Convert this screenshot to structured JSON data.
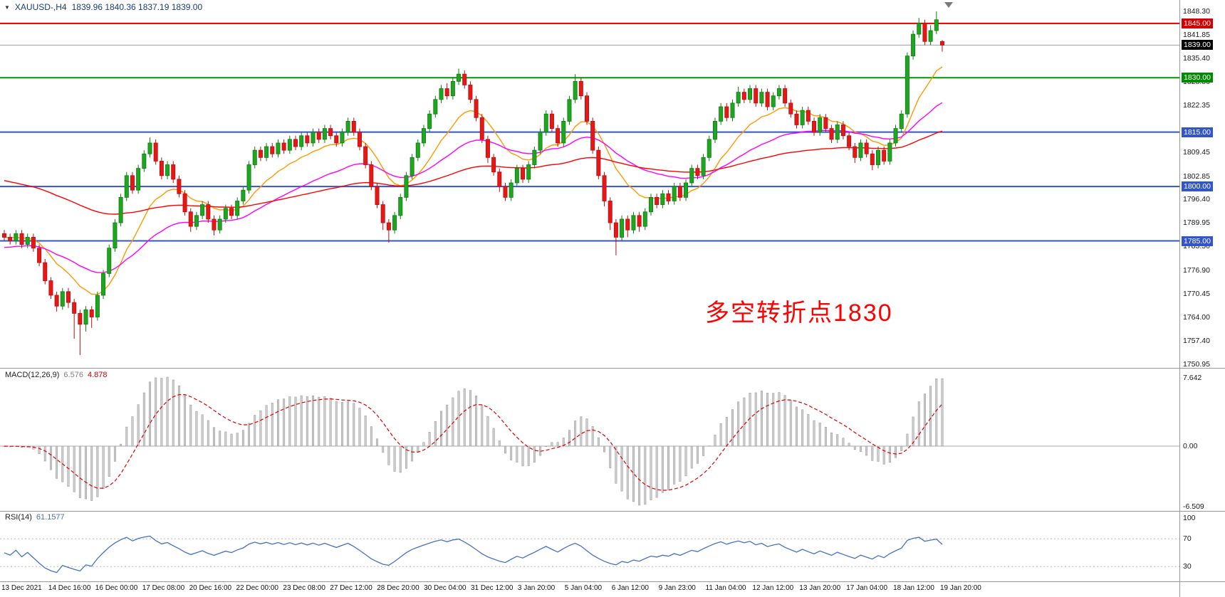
{
  "header": {
    "symbol": "XAUUSD-,H4",
    "ohlc": "1839.96 1840.36 1837.19 1839.00"
  },
  "annotation": {
    "text": "多空转折点1830",
    "color": "#FF0000"
  },
  "colors": {
    "up_candle": "#1FA51F",
    "up_candle_stroke": "#0E7D12",
    "down_candle": "#E61717",
    "down_candle_stroke": "#B80F0F",
    "panel_border": "#999999",
    "current_price_line": "#9B9B9B",
    "macd_histogram": "#CFCFCF",
    "macd_histogram_stroke": "#8F8F8F",
    "macd_signal": "#DD0000",
    "rsi_line": "#4572C4"
  },
  "chart_data": {
    "type": "candlestick",
    "symbol": "XAUUSD",
    "timeframe": "H4",
    "title": "XAUUSD-,H4",
    "current_price": 1839.0,
    "current_bar": {
      "open": 1839.96,
      "high": 1840.36,
      "low": 1837.19,
      "close": 1839.0
    },
    "price_axis_range": [
      1750.95,
      1848.3
    ],
    "price_ticks": [
      "1848.30",
      "1841.85",
      "1835.40",
      "1828.80",
      "1822.35",
      "1809.45",
      "1802.85",
      "1796.40",
      "1789.95",
      "1783.50",
      "1776.90",
      "1770.45",
      "1764.00",
      "1757.40",
      "1750.95"
    ],
    "hlines": [
      {
        "price": 1845.0,
        "label": "1845.00",
        "color": "#E80000",
        "badge_bg": "#D40000"
      },
      {
        "price": 1830.0,
        "label": "1830.00",
        "color": "#009600",
        "badge_bg": "#008A00"
      },
      {
        "price": 1815.0,
        "label": "1815.00",
        "color": "#3355CC",
        "badge_bg": "#3355CC"
      },
      {
        "price": 1800.0,
        "label": "1800.00",
        "color": "#3355CC",
        "badge_bg": "#3355CC"
      },
      {
        "price": 1785.0,
        "label": "1785.00",
        "color": "#3355CC",
        "badge_bg": "#3355CC"
      }
    ],
    "current_price_badge": {
      "label": "1839.00",
      "badge_bg": "#000000"
    },
    "moving_averages": [
      {
        "name": "ma-fast-orange",
        "period": 12,
        "seed": 1786,
        "color": "#FF9900"
      },
      {
        "name": "ma-mid-magenta",
        "period": 34,
        "seed": 1783,
        "color": "#FF00FF"
      },
      {
        "name": "ma-slow-red",
        "period": 89,
        "seed": 1802,
        "color": "#FF0000"
      }
    ],
    "time_labels": [
      "13 Dec 2021",
      "14 Dec 16:00",
      "16 Dec 00:00",
      "17 Dec 08:00",
      "20 Dec 16:00",
      "22 Dec 00:00",
      "23 Dec 08:00",
      "27 Dec 12:00",
      "28 Dec 20:00",
      "30 Dec 04:00",
      "31 Dec 12:00",
      "3 Jan 20:00",
      "5 Jan 04:00",
      "6 Jan 12:00",
      "9 Jan 23:00",
      "11 Jan 04:00",
      "12 Jan 12:00",
      "13 Jan 20:00",
      "17 Jan 04:00",
      "18 Jan 12:00",
      "19 Jan 20:00"
    ],
    "macd": {
      "label": "MACD(12,26,9)",
      "fast": 12,
      "slow": 26,
      "signal": 9,
      "value_main": "6.576",
      "value_signal": "4.878",
      "ticks": [
        "7.642",
        "0.00",
        "-6.509"
      ],
      "tick_values": [
        7.642,
        0.0,
        -6.509
      ]
    },
    "rsi": {
      "label": "RSI(14)",
      "period": 14,
      "value": "61.1577",
      "ticks": [
        "100",
        "70",
        "30"
      ],
      "tick_values": [
        100,
        70,
        30
      ],
      "levels": [
        70,
        30
      ]
    },
    "candles": [
      [
        1787,
        1788,
        1785,
        1786
      ],
      [
        1786,
        1787,
        1784,
        1785
      ],
      [
        1785,
        1788,
        1784,
        1787
      ],
      [
        1787,
        1788,
        1783,
        1784
      ],
      [
        1784,
        1787,
        1783,
        1786
      ],
      [
        1786,
        1787,
        1782,
        1783
      ],
      [
        1783,
        1784,
        1778,
        1779
      ],
      [
        1779,
        1780,
        1773,
        1774
      ],
      [
        1774,
        1775,
        1769,
        1770
      ],
      [
        1770,
        1771,
        1765.5,
        1767
      ],
      [
        1767,
        1772,
        1766,
        1771
      ],
      [
        1771,
        1772,
        1766.5,
        1768
      ],
      [
        1768,
        1769,
        1758,
        1765
      ],
      [
        1765,
        1766,
        1753.5,
        1762
      ],
      [
        1762,
        1767,
        1760,
        1766
      ],
      [
        1766,
        1767,
        1761,
        1764
      ],
      [
        1764,
        1771,
        1763,
        1770
      ],
      [
        1770,
        1777,
        1769,
        1776
      ],
      [
        1776,
        1784,
        1775,
        1783
      ],
      [
        1783,
        1791,
        1782,
        1790
      ],
      [
        1790,
        1798,
        1789,
        1797
      ],
      [
        1797,
        1804,
        1796,
        1803
      ],
      [
        1803,
        1804,
        1798,
        1799
      ],
      [
        1799,
        1806,
        1798,
        1805
      ],
      [
        1805,
        1810,
        1804,
        1809
      ],
      [
        1809,
        1813.5,
        1808,
        1812
      ],
      [
        1812,
        1813,
        1806,
        1807
      ],
      [
        1807,
        1808,
        1802,
        1803
      ],
      [
        1803,
        1807,
        1802,
        1806
      ],
      [
        1806,
        1807,
        1801,
        1802
      ],
      [
        1802,
        1803,
        1797,
        1798
      ],
      [
        1798,
        1799,
        1792,
        1793
      ],
      [
        1793,
        1794,
        1787.5,
        1789
      ],
      [
        1789,
        1793,
        1788,
        1792
      ],
      [
        1792,
        1796,
        1791,
        1795
      ],
      [
        1795,
        1796,
        1790,
        1791
      ],
      [
        1791,
        1792,
        1786.5,
        1788
      ],
      [
        1788,
        1792,
        1787,
        1791
      ],
      [
        1791,
        1795,
        1790,
        1794
      ],
      [
        1794,
        1795,
        1791,
        1792
      ],
      [
        1792,
        1797,
        1791,
        1796
      ],
      [
        1796,
        1800,
        1795,
        1799
      ],
      [
        1799,
        1807,
        1798,
        1806
      ],
      [
        1806,
        1811,
        1805,
        1810
      ],
      [
        1810,
        1811,
        1807,
        1808
      ],
      [
        1808,
        1812,
        1807,
        1811
      ],
      [
        1811,
        1812,
        1808,
        1809
      ],
      [
        1809,
        1813,
        1808,
        1812
      ],
      [
        1812,
        1813,
        1809,
        1810
      ],
      [
        1810,
        1814,
        1809,
        1813
      ],
      [
        1813,
        1814,
        1810,
        1811
      ],
      [
        1811,
        1815,
        1810,
        1814
      ],
      [
        1814,
        1815,
        1811,
        1812
      ],
      [
        1812,
        1816,
        1811,
        1815
      ],
      [
        1815,
        1816,
        1812,
        1813
      ],
      [
        1813,
        1817,
        1812,
        1816
      ],
      [
        1816,
        1817,
        1813,
        1814
      ],
      [
        1814,
        1815,
        1811,
        1812
      ],
      [
        1812,
        1816,
        1811,
        1815
      ],
      [
        1815,
        1819,
        1814,
        1818
      ],
      [
        1818,
        1819,
        1814,
        1815
      ],
      [
        1815,
        1816,
        1810,
        1811
      ],
      [
        1811,
        1812,
        1805,
        1806
      ],
      [
        1806,
        1807,
        1799,
        1800
      ],
      [
        1800,
        1801,
        1794,
        1795
      ],
      [
        1795,
        1796,
        1788,
        1790
      ],
      [
        1790,
        1791,
        1784.5,
        1788
      ],
      [
        1788,
        1793,
        1787,
        1792
      ],
      [
        1792,
        1798,
        1791,
        1797
      ],
      [
        1797,
        1804,
        1796,
        1803
      ],
      [
        1803,
        1809,
        1802,
        1808
      ],
      [
        1808,
        1813,
        1807,
        1812
      ],
      [
        1812,
        1817,
        1811,
        1816
      ],
      [
        1816,
        1821,
        1815,
        1820
      ],
      [
        1820,
        1825,
        1819,
        1824
      ],
      [
        1824,
        1828,
        1823,
        1827
      ],
      [
        1827,
        1828.5,
        1824,
        1825
      ],
      [
        1825,
        1830,
        1824,
        1829
      ],
      [
        1829,
        1832.5,
        1828,
        1831
      ],
      [
        1831,
        1832,
        1827,
        1828
      ],
      [
        1828,
        1829,
        1823,
        1824
      ],
      [
        1824,
        1825,
        1818,
        1819
      ],
      [
        1819,
        1820,
        1812,
        1813
      ],
      [
        1813,
        1814,
        1806.5,
        1808
      ],
      [
        1808,
        1809,
        1803,
        1804
      ],
      [
        1804,
        1805,
        1798.5,
        1800
      ],
      [
        1800,
        1801,
        1796,
        1797
      ],
      [
        1797,
        1802,
        1796,
        1801
      ],
      [
        1801,
        1806,
        1800,
        1805
      ],
      [
        1805,
        1806,
        1801,
        1802
      ],
      [
        1802,
        1807,
        1801,
        1806
      ],
      [
        1806,
        1811,
        1805,
        1810
      ],
      [
        1810,
        1816,
        1809,
        1815
      ],
      [
        1815,
        1821,
        1814,
        1820
      ],
      [
        1820,
        1821,
        1815,
        1816
      ],
      [
        1816,
        1817,
        1811,
        1812
      ],
      [
        1812,
        1819,
        1811,
        1818
      ],
      [
        1818,
        1825,
        1817,
        1824
      ],
      [
        1824,
        1831,
        1823,
        1829
      ],
      [
        1829,
        1830,
        1824,
        1825
      ],
      [
        1825,
        1826,
        1817,
        1818
      ],
      [
        1818,
        1819,
        1809,
        1810
      ],
      [
        1810,
        1811,
        1802,
        1803
      ],
      [
        1803,
        1804,
        1794.5,
        1796
      ],
      [
        1796,
        1797,
        1788,
        1790
      ],
      [
        1790,
        1791,
        1781,
        1786
      ],
      [
        1786,
        1792,
        1785,
        1791
      ],
      [
        1791,
        1792,
        1786,
        1788
      ],
      [
        1788,
        1793,
        1787,
        1792
      ],
      [
        1792,
        1793,
        1787.5,
        1789
      ],
      [
        1789,
        1794,
        1788,
        1793
      ],
      [
        1793,
        1798,
        1792,
        1797
      ],
      [
        1797,
        1798,
        1794,
        1795
      ],
      [
        1795,
        1799,
        1794,
        1798
      ],
      [
        1798,
        1799,
        1795,
        1796
      ],
      [
        1796,
        1801,
        1795,
        1800
      ],
      [
        1800,
        1801,
        1796,
        1797
      ],
      [
        1797,
        1802,
        1796,
        1801
      ],
      [
        1801,
        1806,
        1800,
        1805
      ],
      [
        1805,
        1806,
        1802,
        1803
      ],
      [
        1803,
        1809,
        1802,
        1808
      ],
      [
        1808,
        1814,
        1807,
        1813
      ],
      [
        1813,
        1819,
        1812,
        1818
      ],
      [
        1818,
        1823,
        1817,
        1822
      ],
      [
        1822,
        1823,
        1818,
        1819
      ],
      [
        1819,
        1824,
        1818,
        1823
      ],
      [
        1823,
        1827.5,
        1822,
        1826
      ],
      [
        1826,
        1827,
        1823,
        1824
      ],
      [
        1824,
        1828,
        1823,
        1827
      ],
      [
        1827,
        1828,
        1822,
        1823
      ],
      [
        1823,
        1827,
        1822,
        1826
      ],
      [
        1826,
        1827,
        1821,
        1822
      ],
      [
        1822,
        1826,
        1821,
        1825
      ],
      [
        1825,
        1828,
        1824,
        1827
      ],
      [
        1827,
        1828,
        1822,
        1823
      ],
      [
        1823,
        1824,
        1819,
        1820
      ],
      [
        1820,
        1821,
        1816,
        1817
      ],
      [
        1817,
        1822,
        1816,
        1821
      ],
      [
        1821,
        1822,
        1817,
        1818
      ],
      [
        1818,
        1819,
        1814,
        1815
      ],
      [
        1815,
        1820,
        1814,
        1819
      ],
      [
        1819,
        1820,
        1815,
        1816
      ],
      [
        1816,
        1817,
        1812,
        1813
      ],
      [
        1813,
        1818,
        1812,
        1817
      ],
      [
        1817,
        1818,
        1813,
        1814
      ],
      [
        1814,
        1815,
        1810,
        1811
      ],
      [
        1811,
        1812,
        1806.5,
        1808
      ],
      [
        1808,
        1813,
        1807,
        1812
      ],
      [
        1812,
        1813,
        1808,
        1809
      ],
      [
        1809,
        1810,
        1804.5,
        1806
      ],
      [
        1806,
        1811,
        1805,
        1810
      ],
      [
        1810,
        1811,
        1806,
        1807
      ],
      [
        1807,
        1813,
        1806,
        1812
      ],
      [
        1812,
        1817,
        1811,
        1816
      ],
      [
        1816,
        1821,
        1815,
        1820
      ],
      [
        1820,
        1837,
        1819,
        1836
      ],
      [
        1836,
        1843,
        1835,
        1842
      ],
      [
        1842,
        1846.5,
        1841,
        1845
      ],
      [
        1845,
        1846,
        1839,
        1840
      ],
      [
        1840,
        1844.5,
        1839,
        1843
      ],
      [
        1843,
        1848.3,
        1842,
        1846
      ],
      [
        1840,
        1840.4,
        1837.2,
        1839
      ]
    ]
  }
}
